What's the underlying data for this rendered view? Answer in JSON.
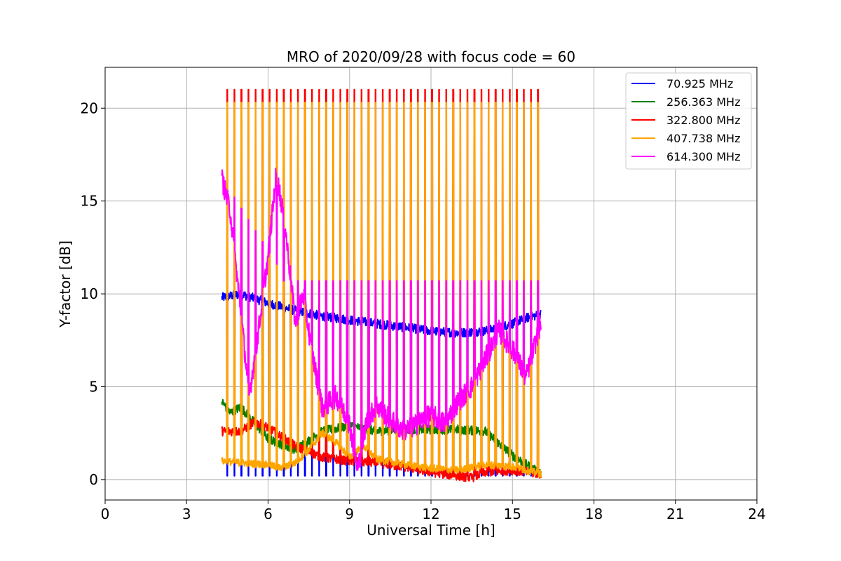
{
  "chart_data": {
    "type": "line",
    "title": "MRO of 2020/09/28 with focus code = 60",
    "xlabel": "Universal Time [h]",
    "ylabel": "Y-factor [dB]",
    "xlim": [
      0,
      24
    ],
    "ylim": [
      -1.1,
      22.2
    ],
    "xticks": [
      0,
      3,
      6,
      9,
      12,
      15,
      18,
      21,
      24
    ],
    "yticks": [
      0,
      5,
      10,
      15,
      20
    ],
    "grid": true,
    "legend_placement": "top-right",
    "time_range": [
      4.3,
      16.05
    ],
    "series": [
      {
        "name": "70.925 MHz",
        "color": "#0000ff",
        "baseline": {
          "x": [
            4.3,
            5,
            6,
            7,
            8,
            9,
            10,
            11,
            12,
            13,
            14,
            15,
            15.5,
            16.05
          ],
          "y": [
            9.8,
            10.0,
            9.5,
            9.1,
            8.8,
            8.6,
            8.4,
            8.2,
            8.0,
            7.9,
            8.0,
            8.4,
            8.7,
            8.9
          ]
        },
        "dips": {
          "start": 4.5,
          "period": 0.26,
          "count": 45,
          "value": 0.2
        }
      },
      {
        "name": "256.363 MHz",
        "color": "#008000",
        "baseline": {
          "x": [
            4.3,
            4.6,
            5,
            6,
            7,
            7.5,
            8,
            9,
            10,
            11,
            12,
            13,
            14,
            15,
            16.05
          ],
          "y": [
            4.2,
            3.6,
            3.9,
            2.2,
            1.6,
            2.1,
            2.6,
            2.9,
            2.6,
            2.7,
            2.7,
            2.7,
            2.6,
            1.3,
            0.3
          ]
        }
      },
      {
        "name": "322.800 MHz",
        "color": "#ff0000",
        "baseline": {
          "x": [
            4.3,
            5,
            5.5,
            6,
            7,
            8,
            9,
            10,
            11,
            12,
            13,
            13.5,
            14,
            15,
            16.05
          ],
          "y": [
            2.6,
            2.6,
            3.1,
            2.8,
            1.8,
            1.2,
            1.0,
            0.9,
            0.7,
            0.4,
            0.2,
            0.1,
            0.4,
            0.5,
            0.3
          ]
        },
        "spikes": {
          "start": 4.5,
          "period": 0.26,
          "count": 45,
          "value": 21.0
        }
      },
      {
        "name": "407.738 MHz",
        "color": "#ffa500",
        "baseline": {
          "x": [
            4.3,
            5,
            6,
            6.5,
            7,
            7.5,
            8,
            8.5,
            9,
            9.5,
            10,
            11,
            12,
            13,
            14,
            15,
            16.05
          ],
          "y": [
            1.0,
            0.9,
            0.8,
            0.6,
            0.9,
            1.6,
            2.5,
            2.0,
            1.2,
            1.8,
            1.1,
            0.8,
            0.6,
            0.5,
            0.8,
            0.7,
            0.3
          ]
        },
        "spikes": {
          "start": 4.5,
          "period": 0.26,
          "count": 45,
          "value": 20.3
        }
      },
      {
        "name": "614.300 MHz",
        "color": "#ff00ff",
        "baseline": {
          "x": [
            4.3,
            4.6,
            5.0,
            5.3,
            5.6,
            6.0,
            6.3,
            6.6,
            7.0,
            7.3,
            7.6,
            8.0,
            8.5,
            9.0,
            9.3,
            9.6,
            10.0,
            10.5,
            11.0,
            11.5,
            12.0,
            12.5,
            13.0,
            13.5,
            14.0,
            14.5,
            15.0,
            15.5,
            16.05
          ],
          "y": [
            16.2,
            14.5,
            9.0,
            4.5,
            7.5,
            12.0,
            16.5,
            14.0,
            8.5,
            10.0,
            7.0,
            3.8,
            4.5,
            3.0,
            0.5,
            3.0,
            4.0,
            3.2,
            2.6,
            3.0,
            3.5,
            3.0,
            4.2,
            5.0,
            6.5,
            8.0,
            7.0,
            5.5,
            8.5
          ]
        },
        "spikes": {
          "start": 4.5,
          "period": 0.26,
          "count": 45,
          "value": 10.7,
          "early_values": [
            15.2,
            15.2,
            14.6,
            14.0,
            13.4,
            12.8,
            12.2,
            11.6
          ]
        }
      }
    ]
  }
}
